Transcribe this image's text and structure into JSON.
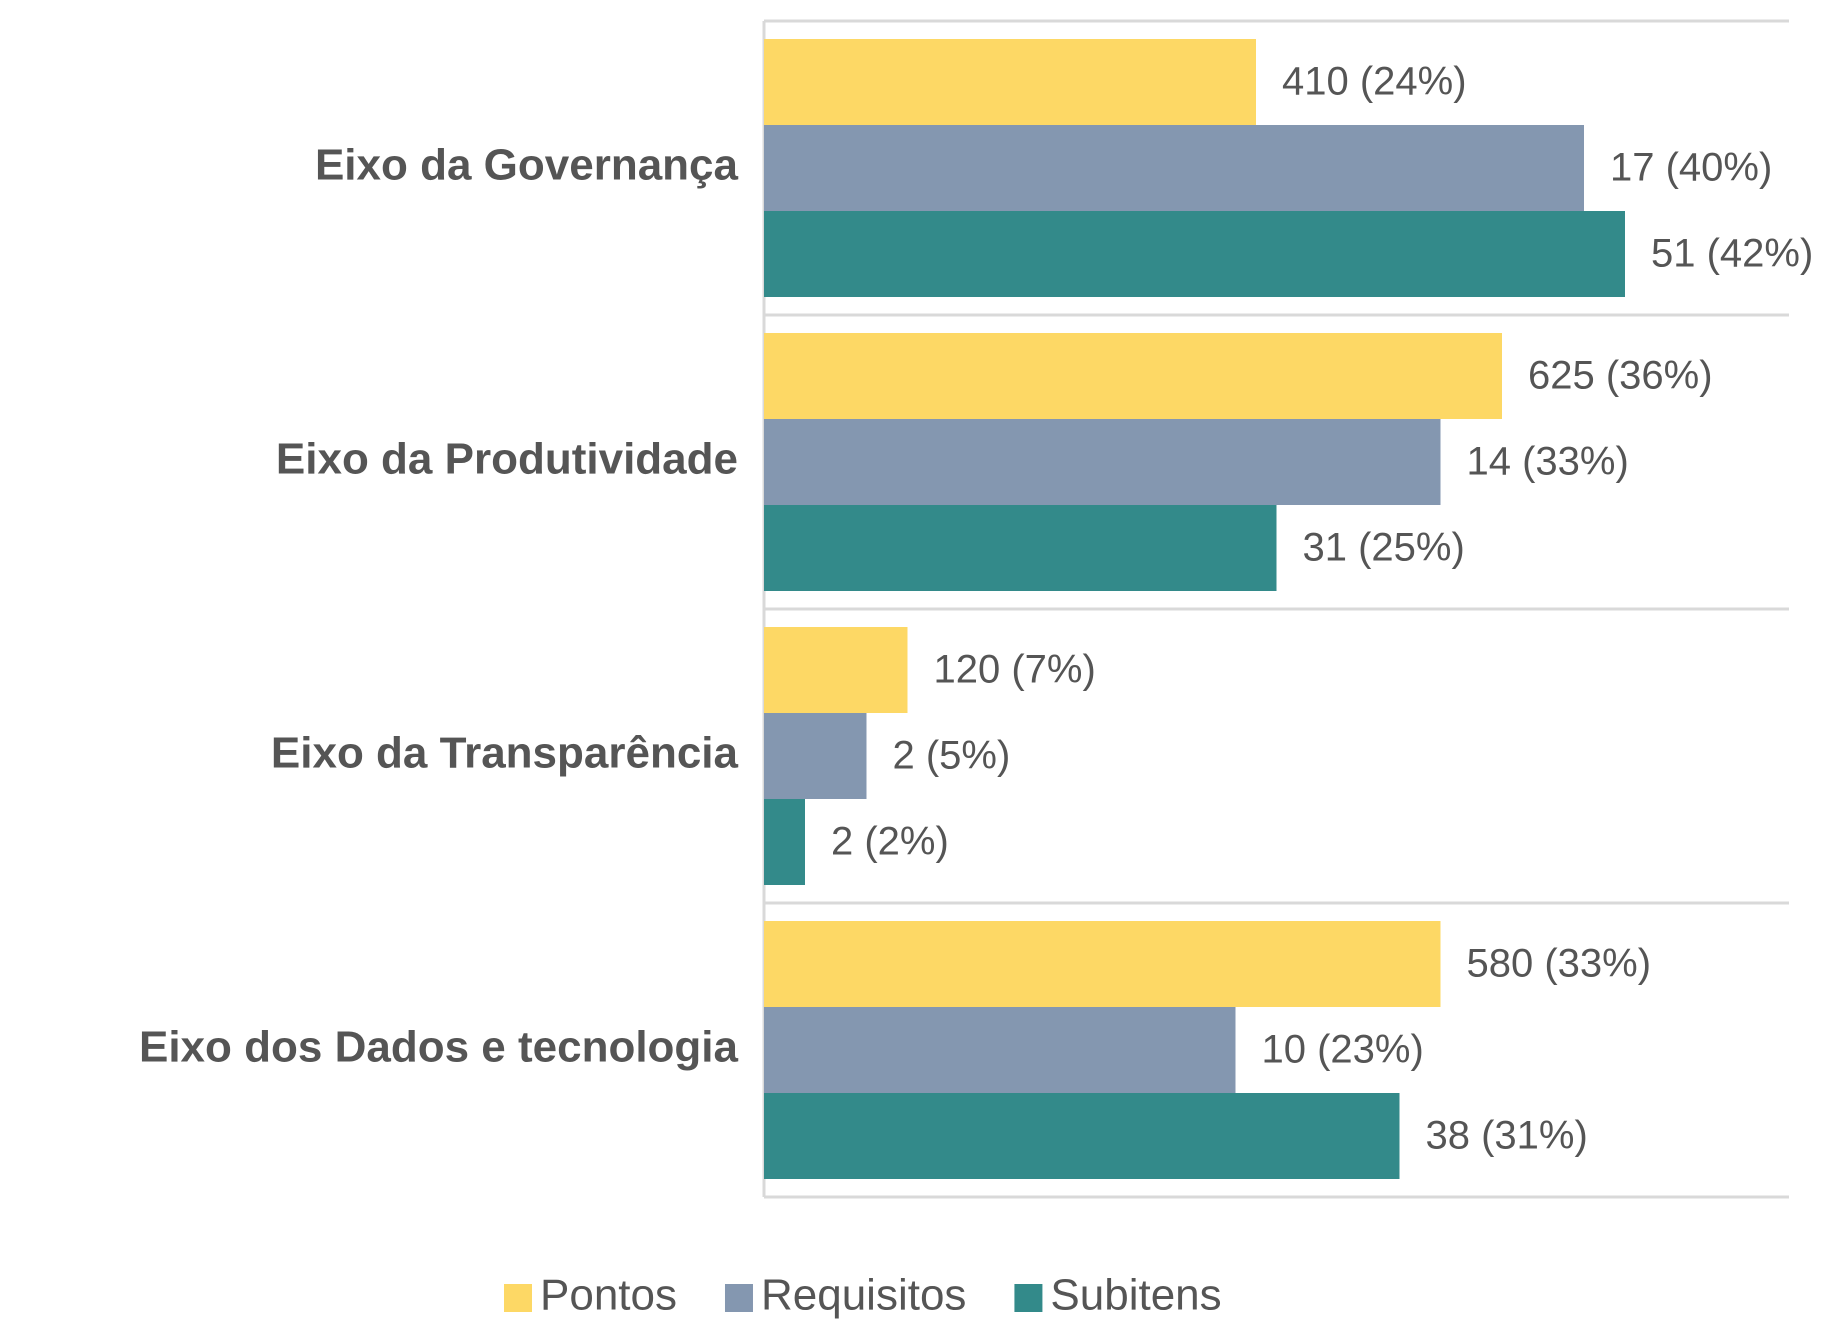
{
  "chart_data": {
    "type": "barh",
    "categories": [
      "Eixo da Governança",
      "Eixo da Produtividade",
      "Eixo da Transparência",
      "Eixo dos Dados e tecnologia"
    ],
    "series": [
      {
        "name": "Pontos",
        "color": "#fdd865",
        "values": [
          24,
          36,
          7,
          33
        ],
        "value_labels": [
          "410 (24%)",
          "625 (36%)",
          "120 (7%)",
          "580 (33%)"
        ]
      },
      {
        "name": "Requisitos",
        "color": "#8497b0",
        "values": [
          40,
          33,
          5,
          23
        ],
        "value_labels": [
          "17 (40%)",
          "14 (33%)",
          "2 (5%)",
          "10 (23%)"
        ]
      },
      {
        "name": "Subitens",
        "color": "#338a8a",
        "values": [
          42,
          25,
          2,
          31
        ],
        "value_labels": [
          "51 (42%)",
          "31 (25%)",
          "2 (2%)",
          "38 (31%)"
        ]
      }
    ],
    "xlim": [
      0,
      50
    ],
    "legend": "bottom"
  }
}
